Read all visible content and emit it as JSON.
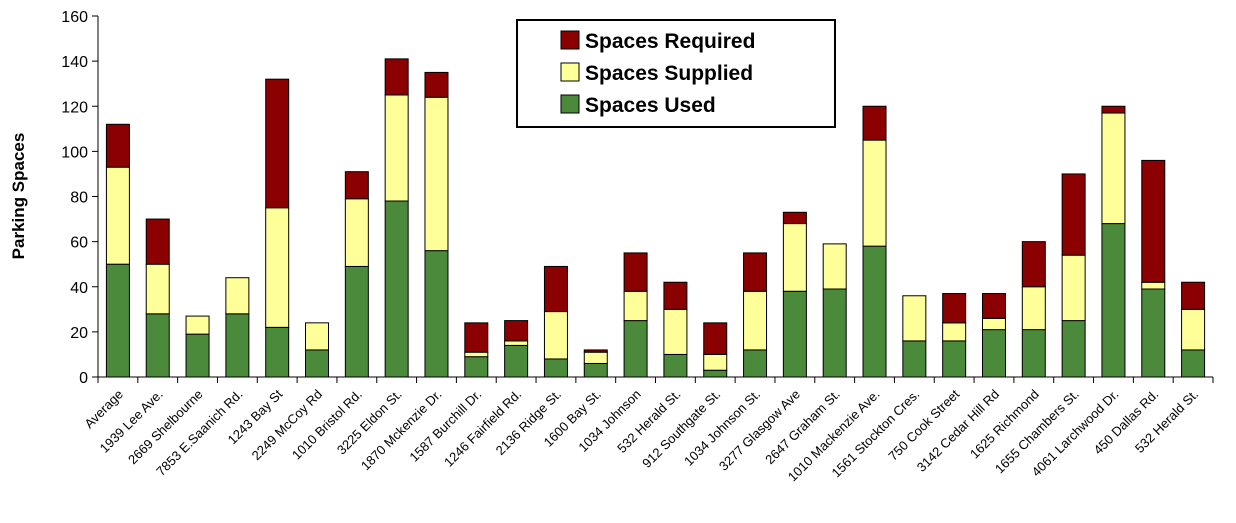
{
  "chart_data": {
    "type": "stacked-bar",
    "y_label": "Parking Spaces",
    "categories": [
      "Average",
      "1939 Lee Ave.",
      "2669 Shelbourne",
      "7853 E.Saanich Rd.",
      "1243 Bay St",
      "2249 McCoy Rd",
      "1010 Bristol Rd.",
      "3225 Eldon St.",
      "1870 Mckenzie Dr.",
      "1587 Burchill Dr.",
      "1246 Fairfield Rd.",
      "2136 Ridge St.",
      "1600 Bay St.",
      "1034 Johnson",
      "532 Herald St.",
      "912 Southgate St.",
      "1034 Johnson St.",
      "3277 Glasgow Ave",
      "2647 Graham St.",
      "1010 Mackenzie Ave.",
      "1561 Stockton Cres.",
      "750 Cook Street",
      "3142 Cedar Hill Rd",
      "1625 Richmond",
      "1655 Chambers St.",
      "4061 Larchwood Dr.",
      "450 Dallas Rd.",
      "532 Herald St."
    ],
    "series": [
      {
        "name": "Spaces Used",
        "color": "#4a8a3a",
        "values": [
          50,
          28,
          19,
          28,
          22,
          12,
          49,
          78,
          56,
          9,
          14,
          8,
          6,
          25,
          10,
          3,
          12,
          38,
          39,
          58,
          16,
          16,
          21,
          21,
          25,
          68,
          39,
          12
        ]
      },
      {
        "name": "Spaces Supplied",
        "color": "#ffff99",
        "values": [
          43,
          22,
          8,
          16,
          53,
          12,
          30,
          47,
          68,
          2,
          2,
          21,
          5,
          13,
          20,
          7,
          26,
          30,
          20,
          47,
          20,
          8,
          5,
          19,
          29,
          49,
          3,
          18
        ]
      },
      {
        "name": "Spaces Required",
        "color": "#8b0000",
        "values": [
          19,
          20,
          0,
          0,
          57,
          0,
          12,
          16,
          11,
          13,
          9,
          20,
          1,
          17,
          12,
          14,
          17,
          5,
          0,
          15,
          0,
          13,
          11,
          20,
          36,
          3,
          54,
          12
        ]
      }
    ],
    "ylim": [
      0,
      160
    ],
    "yticks": [
      0,
      20,
      40,
      60,
      80,
      100,
      120,
      140,
      160
    ],
    "legend": "top-center",
    "grid": false
  }
}
